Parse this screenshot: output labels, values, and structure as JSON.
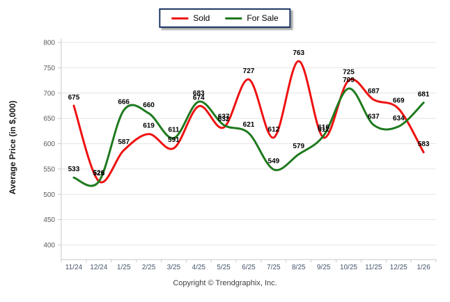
{
  "legend": {
    "items": [
      {
        "label": "Sold",
        "color": "#ee1111"
      },
      {
        "label": "For Sale",
        "color": "#1e7a1e"
      }
    ]
  },
  "chart_data": {
    "type": "line",
    "categories": [
      "11/24",
      "12/24",
      "1/25",
      "2/25",
      "3/25",
      "4/25",
      "5/25",
      "6/25",
      "7/25",
      "8/25",
      "9/25",
      "10/25",
      "11/25",
      "12/25",
      "1/26"
    ],
    "series": [
      {
        "name": "Sold",
        "color": "#ee1111",
        "values": [
          675,
          526,
          587,
          619,
          591,
          674,
          632,
          727,
          612,
          763,
          612,
          725,
          687,
          669,
          583
        ]
      },
      {
        "name": "For Sale",
        "color": "#1e7a1e",
        "values": [
          533,
          525,
          666,
          660,
          611,
          683,
          637,
          621,
          549,
          579,
          616,
          709,
          637,
          634,
          681
        ]
      }
    ],
    "title": "",
    "xlabel": "",
    "ylabel": "Average Price (in $,000)",
    "ylim": [
      400,
      800
    ],
    "ytick_step": 50,
    "grid": "horizontal",
    "legend_position": "top-center",
    "data_labels": true
  },
  "footer": {
    "copyright": "Copyright © Trendgraphix, Inc."
  },
  "style": {
    "grid_color": "#e4e4e4",
    "axis_color": "#c9c9c9",
    "xtick_label_color": "#44546a",
    "ytick_label_color": "#5a5a5a",
    "data_label_color": "#000000",
    "legend_border_color": "#1f3864"
  }
}
